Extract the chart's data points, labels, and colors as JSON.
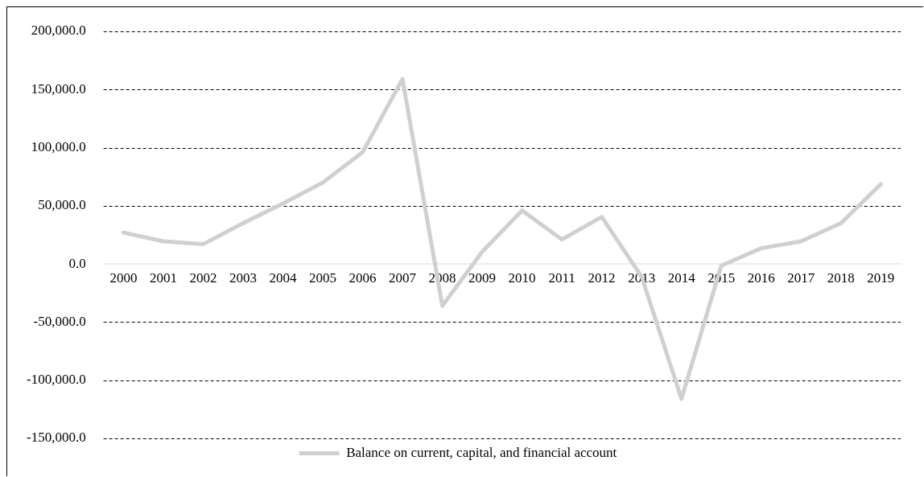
{
  "chart_data": {
    "type": "line",
    "categories": [
      "2000",
      "2001",
      "2002",
      "2003",
      "2004",
      "2005",
      "2006",
      "2007",
      "2008",
      "2009",
      "2010",
      "2011",
      "2012",
      "2013",
      "2014",
      "2015",
      "2016",
      "2017",
      "2018",
      "2019"
    ],
    "series": [
      {
        "name": "Balance on current, capital, and financial account",
        "color": "#d0d0d0",
        "values": [
          27000,
          19500,
          17000,
          35000,
          52000,
          70000,
          96000,
          159000,
          -36000,
          10500,
          46000,
          21000,
          40500,
          -11000,
          -116000,
          -1500,
          13500,
          19500,
          35000,
          68500
        ]
      }
    ],
    "ylim": [
      -150000,
      200000
    ],
    "yticks": [
      {
        "value": -150000,
        "label": "-150,000.0"
      },
      {
        "value": -100000,
        "label": "-100,000.0"
      },
      {
        "value": -50000,
        "label": "-50,000.0"
      },
      {
        "value": 0,
        "label": "0.0"
      },
      {
        "value": 50000,
        "label": "50,000.0"
      },
      {
        "value": 100000,
        "label": "100,000.0"
      },
      {
        "value": 150000,
        "label": "150,000.0"
      },
      {
        "value": 200000,
        "label": "200,000.0"
      }
    ],
    "grid": "y",
    "legend": "bottom",
    "marker": "none",
    "line_style": "solid"
  }
}
